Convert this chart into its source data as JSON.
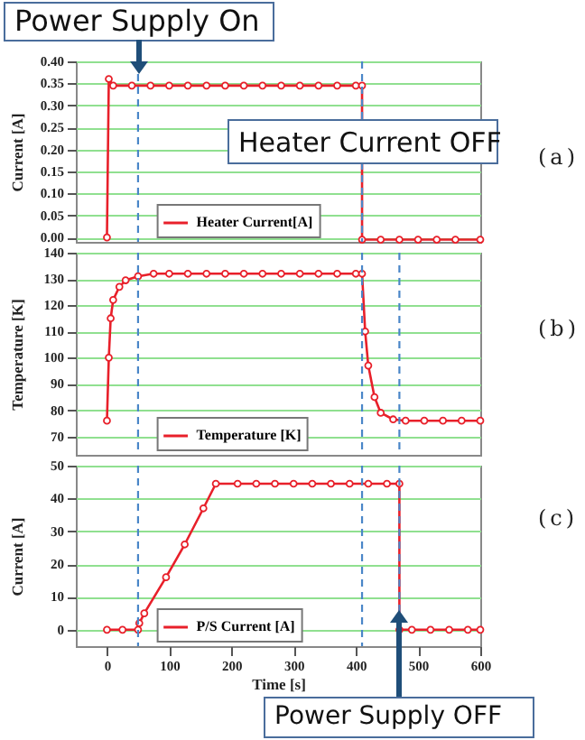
{
  "chart_data": [
    {
      "type": "line",
      "ylabel": "Current [A]",
      "annotations": [
        "Power Supply On",
        "Heater Current OFF",
        "(a)"
      ],
      "x": [
        0,
        3,
        10,
        40,
        70,
        100,
        130,
        160,
        190,
        220,
        250,
        280,
        310,
        340,
        370,
        400,
        410,
        410,
        440,
        470,
        500,
        530,
        560,
        600
      ],
      "series": [
        {
          "name": "Heater Current[A]",
          "color": "#e8202a",
          "values": [
            0,
            0.36,
            0.345,
            0.345,
            0.345,
            0.345,
            0.345,
            0.345,
            0.345,
            0.345,
            0.345,
            0.345,
            0.345,
            0.345,
            0.345,
            0.345,
            0.345,
            -0.005,
            -0.005,
            -0.005,
            -0.005,
            -0.005,
            -0.005,
            -0.005
          ]
        }
      ],
      "xlim": [
        -50,
        600
      ],
      "ylim": [
        -0.01,
        0.4
      ],
      "yticks": [
        {
          "value": 0,
          "label": "0.00"
        },
        0.05,
        {
          "value": 0.1,
          "label": "0.10"
        },
        0.15,
        {
          "value": 0.2,
          "label": "0.20"
        },
        0.25,
        {
          "value": 0.3,
          "label": "0.30"
        },
        0.35,
        {
          "value": 0.4,
          "label": "0.40"
        }
      ],
      "tick_labels": "y",
      "grid": "y",
      "legend": "bottom left",
      "marker": "circle",
      "line_style": "solid",
      "ref_lines": [
        {
          "axis": "x",
          "value": 50,
          "color": "#4a86c8",
          "line_style": "dashed"
        },
        {
          "axis": "x",
          "value": 410,
          "color": "#4a86c8",
          "line_style": "dashed"
        }
      ]
    },
    {
      "type": "line",
      "ylabel": "Temperature [K]",
      "annotations": [
        "(b)"
      ],
      "x": [
        0,
        3,
        6,
        10,
        20,
        30,
        50,
        75,
        100,
        130,
        160,
        190,
        220,
        250,
        280,
        310,
        340,
        370,
        400,
        410,
        415,
        420,
        430,
        440,
        460,
        480,
        510,
        540,
        570,
        600
      ],
      "series": [
        {
          "name": "Temperature [K]",
          "color": "#e8202a",
          "values": [
            76,
            100,
            115,
            122,
            127,
            129.5,
            131,
            132,
            132,
            132,
            132,
            132,
            132,
            132,
            132,
            132,
            132,
            132,
            132,
            132,
            110,
            97,
            85,
            79,
            76.5,
            76,
            76,
            76,
            76,
            76
          ]
        }
      ],
      "xlim": [
        -50,
        600
      ],
      "ylim": [
        63,
        140
      ],
      "yticks": [
        70,
        80,
        90,
        100,
        110,
        120,
        130,
        140
      ],
      "tick_labels": "y",
      "grid": "y",
      "legend": "bottom left",
      "marker": "circle",
      "line_style": "solid",
      "ref_lines": [
        {
          "axis": "x",
          "value": 50,
          "color": "#4a86c8",
          "line_style": "dashed"
        },
        {
          "axis": "x",
          "value": 410,
          "color": "#4a86c8",
          "line_style": "dashed"
        },
        {
          "axis": "x",
          "value": 470,
          "color": "#4a86c8",
          "line_style": "dashed"
        }
      ]
    },
    {
      "type": "line",
      "xlabel": "Time [s]",
      "ylabel": "Current [A]",
      "annotations": [
        "(c)",
        "Power Supply OFF"
      ],
      "x": [
        0,
        25,
        50,
        52,
        60,
        95,
        125,
        155,
        175,
        210,
        240,
        270,
        300,
        330,
        360,
        390,
        420,
        450,
        470,
        470,
        490,
        520,
        550,
        580,
        600
      ],
      "series": [
        {
          "name": "P/S Current [A]",
          "color": "#e8202a",
          "values": [
            0,
            0,
            0,
            2,
            5,
            16,
            26,
            37,
            44.5,
            44.5,
            44.5,
            44.5,
            44.5,
            44.5,
            44.5,
            44.5,
            44.5,
            44.5,
            44.5,
            0,
            0,
            0,
            0,
            0,
            0
          ]
        }
      ],
      "xlim": [
        -50,
        600
      ],
      "ylim": [
        -5,
        50
      ],
      "xticks": [
        0,
        100,
        200,
        300,
        400,
        500,
        600
      ],
      "yticks": [
        0,
        10,
        20,
        30,
        40,
        50
      ],
      "grid": "y",
      "legend": "bottom left",
      "marker": "circle",
      "line_style": "solid",
      "ref_lines": [
        {
          "axis": "x",
          "value": 50,
          "color": "#4a86c8",
          "line_style": "dashed"
        },
        {
          "axis": "x",
          "value": 410,
          "color": "#4a86c8",
          "line_style": "dashed"
        },
        {
          "axis": "x",
          "value": 470,
          "color": "#4a86c8",
          "line_style": "dashed"
        }
      ]
    }
  ]
}
